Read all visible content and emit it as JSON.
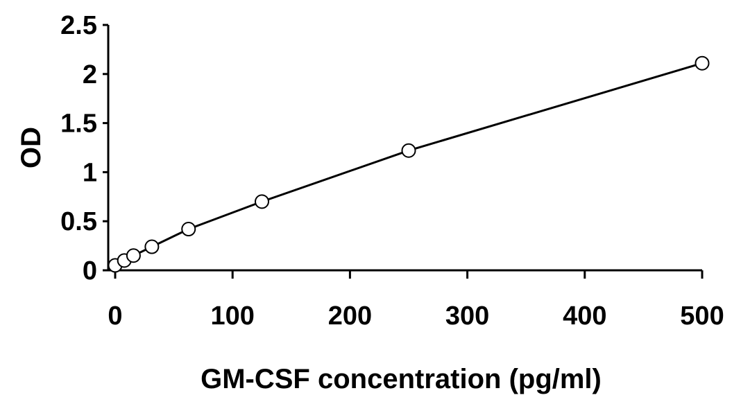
{
  "chart_data": {
    "type": "line",
    "title": "",
    "xlabel": "GM-CSF concentration (pg/ml)",
    "ylabel": "OD",
    "xlim": [
      0,
      500
    ],
    "ylim": [
      0,
      2.5
    ],
    "x_ticks": [
      0,
      100,
      200,
      300,
      400,
      500
    ],
    "y_ticks": [
      0,
      0.5,
      1,
      1.5,
      2,
      2.5
    ],
    "x_tick_labels": [
      "0",
      "100",
      "200",
      "300",
      "400",
      "500"
    ],
    "y_tick_labels": [
      "0",
      "0.5",
      "1",
      "1.5",
      "2",
      "2.5"
    ],
    "grid": false,
    "legend": "none",
    "series": [
      {
        "x": [
          0,
          7.8,
          15.6,
          31.25,
          62.5,
          125,
          250,
          500
        ],
        "y": [
          0.05,
          0.1,
          0.15,
          0.24,
          0.42,
          0.7,
          1.22,
          2.11
        ],
        "marker": "open-circle",
        "line_color": "#000000",
        "marker_fill": "#ffffff"
      }
    ]
  }
}
